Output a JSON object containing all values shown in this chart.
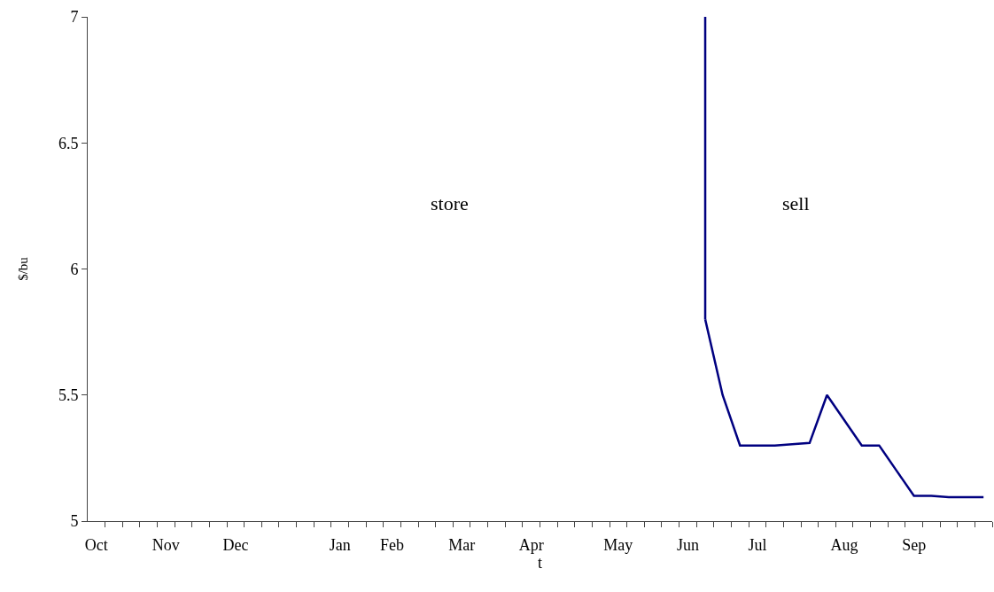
{
  "chart_data": {
    "type": "line",
    "xlabel": "t",
    "ylabel": "$/bu",
    "categories": [
      "Oct",
      null,
      null,
      null,
      "Nov",
      null,
      null,
      null,
      "Dec",
      null,
      null,
      null,
      null,
      null,
      "Jan",
      null,
      null,
      "Feb",
      null,
      null,
      null,
      "Mar",
      null,
      null,
      null,
      "Apr",
      null,
      null,
      null,
      null,
      "May",
      null,
      null,
      null,
      "Jun",
      null,
      null,
      null,
      "Jul",
      null,
      null,
      null,
      null,
      "Aug",
      null,
      null,
      null,
      "Sep",
      null,
      null,
      null,
      null
    ],
    "series": [
      {
        "color": "#000080",
        "values": [
          null,
          null,
          null,
          null,
          null,
          null,
          null,
          null,
          null,
          null,
          null,
          null,
          null,
          null,
          null,
          null,
          null,
          null,
          null,
          null,
          null,
          null,
          null,
          null,
          null,
          null,
          null,
          null,
          null,
          null,
          null,
          null,
          null,
          null,
          null,
          5.8,
          5.5,
          5.3,
          5.3,
          5.3,
          5.305,
          5.31,
          5.5,
          5.4,
          5.3,
          5.3,
          5.2,
          5.1,
          5.1,
          5.095,
          5.095,
          5.095
        ],
        "errors": [
          null,
          null,
          null,
          null,
          null,
          null,
          null,
          null,
          null,
          null,
          null,
          null,
          null,
          null,
          null,
          null,
          null,
          null,
          null,
          null,
          null,
          null,
          null,
          null,
          null,
          null,
          null,
          null,
          null,
          null,
          null,
          null,
          null,
          null,
          null,
          [
            5.8,
            7.0
          ],
          null,
          null,
          null,
          null,
          null,
          null,
          null,
          null,
          null,
          null,
          null,
          null,
          null,
          null,
          null,
          null
        ]
      }
    ],
    "ylim": [
      5,
      7
    ],
    "yticks": [
      5,
      5.5,
      6,
      6.5,
      7
    ],
    "annotations": [
      "store",
      "sell"
    ],
    "marker": "none",
    "line_style": "solid"
  }
}
